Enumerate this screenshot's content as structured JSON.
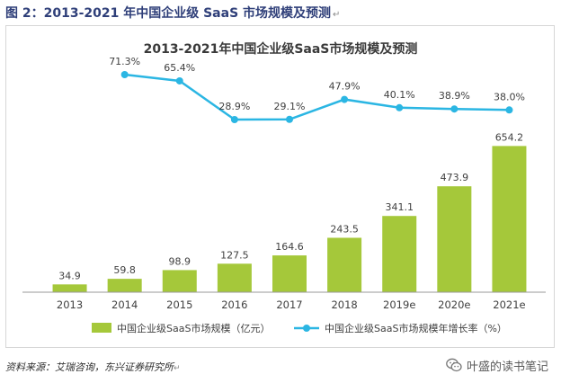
{
  "figure": {
    "caption": "图 2：2013-2021 年中国企业级 SaaS 市场规模及预测",
    "caption_return_mark": "↵",
    "source": "资料来源：艾瑞咨询，东兴证券研究所",
    "source_return_mark": "↵",
    "watermark": "叶盛的读书笔记",
    "watermark_icon": "wechat-icon"
  },
  "chart_data": {
    "type": "bar",
    "title": "2013-2021年中国企业级SaaS市场规模及预测",
    "categories": [
      "2013",
      "2014",
      "2015",
      "2016",
      "2017",
      "2018",
      "2019e",
      "2020e",
      "2021e"
    ],
    "series": [
      {
        "name": "中国企业级SaaS市场规模（亿元）",
        "type": "bar",
        "color": "#a5c83a",
        "values": [
          34.9,
          59.8,
          98.9,
          127.5,
          164.6,
          243.5,
          341.1,
          473.9,
          654.2
        ],
        "labels": [
          "34.9",
          "59.8",
          "98.9",
          "127.5",
          "164.6",
          "243.5",
          "341.1",
          "473.9",
          "654.2"
        ]
      },
      {
        "name": "中国企业级SaaS市场规模年增长率（%）",
        "type": "line",
        "color": "#2bb6e3",
        "values": [
          null,
          71.3,
          65.4,
          28.9,
          29.1,
          47.9,
          40.1,
          38.9,
          38.0
        ],
        "labels": [
          "",
          "71.3%",
          "65.4%",
          "28.9%",
          "29.1%",
          "47.9%",
          "40.1%",
          "38.9%",
          "38.0%"
        ]
      }
    ],
    "legend_position": "bottom",
    "grid": false,
    "bar_ylim": [
      0,
      700
    ],
    "line_ylim": [
      0,
      80
    ]
  }
}
